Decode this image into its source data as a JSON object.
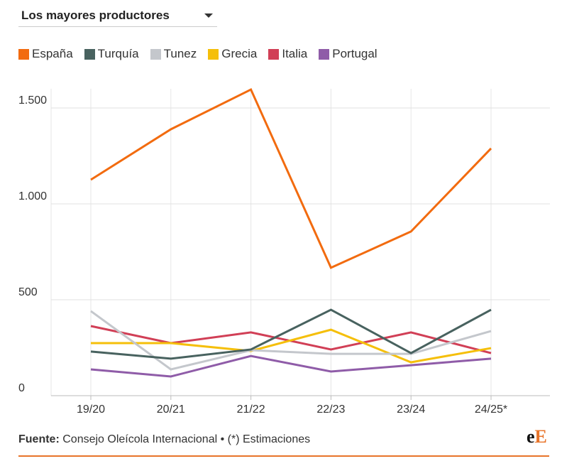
{
  "header": {
    "dropdown": "Los mayores productores"
  },
  "chart_data": {
    "type": "line",
    "categories": [
      "19/20",
      "20/21",
      "21/22",
      "22/23",
      "23/24",
      "24/25*"
    ],
    "series": [
      {
        "name": "España",
        "color": "#f26b0f",
        "values": [
          1126,
          1389,
          1596,
          667,
          856,
          1289
        ]
      },
      {
        "name": "Turquía",
        "color": "#48625f",
        "values": [
          230,
          193,
          241,
          448,
          222,
          448
        ]
      },
      {
        "name": "Tunez",
        "color": "#c4c7cc",
        "values": [
          441,
          137,
          237,
          218,
          218,
          337
        ]
      },
      {
        "name": "Grecia",
        "color": "#f5bf0a",
        "values": [
          274,
          274,
          233,
          344,
          174,
          248
        ]
      },
      {
        "name": "Italia",
        "color": "#d13f56",
        "values": [
          363,
          274,
          330,
          241,
          330,
          222
        ]
      },
      {
        "name": "Portugal",
        "color": "#8f5ca8",
        "values": [
          137,
          100,
          207,
          126,
          159,
          193
        ]
      }
    ],
    "ylim": [
      0,
      1600
    ],
    "yticks": [
      0,
      500,
      {
        "value": 1000,
        "label": "1.000"
      },
      {
        "value": 1500,
        "label": "1.500"
      }
    ],
    "grid": true
  },
  "footer": {
    "label": "Fuente:",
    "text": "Consejo Oleícola Internacional • (*) Estimaciones"
  },
  "logo": [
    "e",
    "E"
  ]
}
